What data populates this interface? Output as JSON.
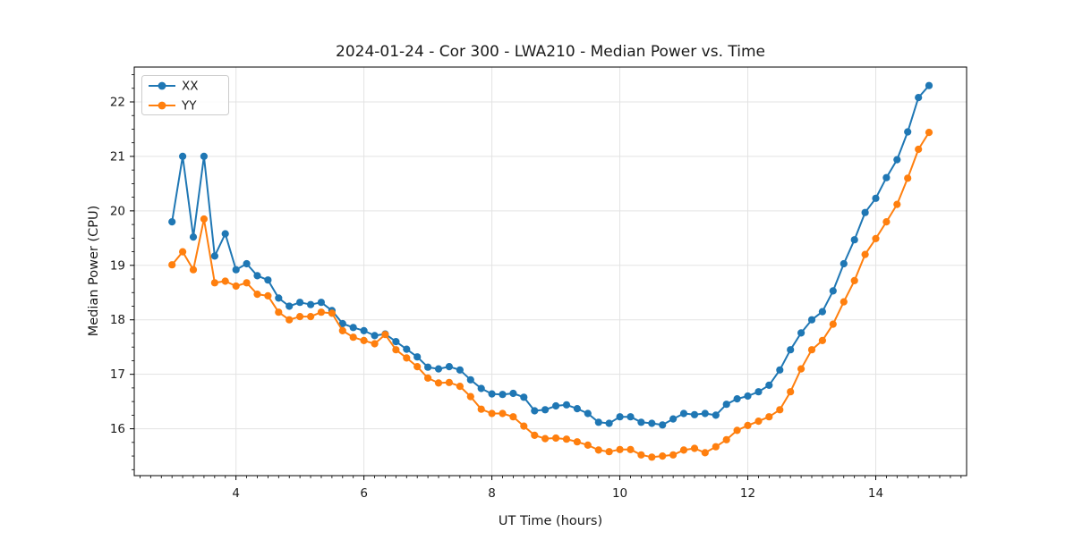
{
  "page": {
    "title": "2024-01-24 - Cor 300 - LWA210 - Median Power vs. Time"
  },
  "chart_data": {
    "type": "line",
    "title": "2024-01-24 - Cor 300 - LWA210 - Median Power vs. Time",
    "xlabel": "UT Time (hours)",
    "ylabel": "Median Power (CPU)",
    "xlim": [
      2.41,
      15.42
    ],
    "ylim": [
      15.14,
      22.64
    ],
    "xticks": [
      4,
      6,
      8,
      10,
      12,
      14
    ],
    "yticks": [
      16,
      17,
      18,
      19,
      20,
      21,
      22
    ],
    "x_minor_step": 0.1667,
    "y_minor_step": 0.25,
    "grid": true,
    "grid_color": "#e3e3e3",
    "legend_position": "upper left",
    "marker": "circle",
    "x": [
      3.0,
      3.167,
      3.333,
      3.5,
      3.667,
      3.833,
      4.0,
      4.167,
      4.333,
      4.5,
      4.667,
      4.833,
      5.0,
      5.167,
      5.333,
      5.5,
      5.667,
      5.833,
      6.0,
      6.167,
      6.333,
      6.5,
      6.667,
      6.833,
      7.0,
      7.167,
      7.333,
      7.5,
      7.667,
      7.833,
      8.0,
      8.167,
      8.333,
      8.5,
      8.667,
      8.833,
      9.0,
      9.167,
      9.333,
      9.5,
      9.667,
      9.833,
      10.0,
      10.167,
      10.333,
      10.5,
      10.667,
      10.833,
      11.0,
      11.167,
      11.333,
      11.5,
      11.667,
      11.833,
      12.0,
      12.167,
      12.333,
      12.5,
      12.667,
      12.833,
      13.0,
      13.167,
      13.333,
      13.5,
      13.667,
      13.833,
      14.0,
      14.167,
      14.333,
      14.5,
      14.667,
      14.833
    ],
    "series": [
      {
        "name": "XX",
        "color": "#1f77b4",
        "values": [
          19.8,
          21.0,
          19.52,
          21.0,
          19.17,
          19.58,
          18.92,
          19.03,
          18.81,
          18.73,
          18.4,
          18.25,
          18.32,
          18.28,
          18.32,
          18.17,
          17.93,
          17.86,
          17.8,
          17.71,
          17.74,
          17.6,
          17.46,
          17.32,
          17.13,
          17.1,
          17.14,
          17.08,
          16.9,
          16.74,
          16.64,
          16.63,
          16.65,
          16.58,
          16.33,
          16.35,
          16.42,
          16.44,
          16.37,
          16.28,
          16.12,
          16.1,
          16.22,
          16.22,
          16.12,
          16.1,
          16.07,
          16.18,
          16.28,
          16.26,
          16.28,
          16.25,
          16.45,
          16.55,
          16.6,
          16.68,
          16.8,
          17.08,
          17.45,
          17.76,
          18.0,
          18.15,
          18.53,
          19.03,
          19.47,
          19.97,
          20.23,
          20.61,
          20.94,
          21.45,
          22.08,
          22.3
        ]
      },
      {
        "name": "YY",
        "color": "#ff7f0e",
        "values": [
          19.01,
          19.25,
          18.92,
          19.85,
          18.68,
          18.71,
          18.62,
          18.68,
          18.47,
          18.44,
          18.14,
          18.0,
          18.06,
          18.06,
          18.14,
          18.12,
          17.8,
          17.68,
          17.62,
          17.56,
          17.73,
          17.45,
          17.3,
          17.14,
          16.93,
          16.84,
          16.85,
          16.78,
          16.59,
          16.36,
          16.28,
          16.28,
          16.22,
          16.05,
          15.88,
          15.82,
          15.83,
          15.81,
          15.76,
          15.7,
          15.61,
          15.58,
          15.62,
          15.62,
          15.52,
          15.48,
          15.5,
          15.52,
          15.61,
          15.64,
          15.56,
          15.67,
          15.8,
          15.97,
          16.06,
          16.14,
          16.22,
          16.35,
          16.68,
          17.1,
          17.45,
          17.62,
          17.92,
          18.33,
          18.72,
          19.2,
          19.49,
          19.8,
          20.12,
          20.6,
          21.13,
          21.44
        ]
      }
    ]
  }
}
